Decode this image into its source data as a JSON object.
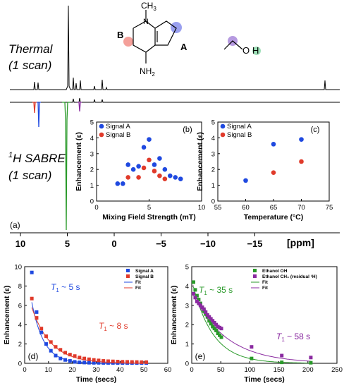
{
  "panel_labels": {
    "a": "(a)",
    "b": "(b)",
    "c": "(c)",
    "d": "(d)",
    "e": "(e)"
  },
  "spectrum": {
    "thermal_label_line1": "Thermal",
    "thermal_label_line2": "(1 scan)",
    "sabre_label_line1_sup": "1",
    "sabre_label_line1": "H SABRE",
    "sabre_label_line2": "(1 scan)",
    "axis_unit": "[ppm]",
    "ticks": [
      {
        "value": 10,
        "label": "10"
      },
      {
        "value": 5,
        "label": "5"
      },
      {
        "value": 0,
        "label": "0"
      },
      {
        "value": -5,
        "label": "−5"
      },
      {
        "value": -10,
        "label": "−10"
      },
      {
        "value": -15,
        "label": "−15"
      }
    ],
    "peak_colors": {
      "signal_a": "#1f49e0",
      "signal_b": "#e03a2a",
      "ethanol_oh": "#2a9a2a",
      "ethanol_ch": "#8a2aa0"
    }
  },
  "molecule": {
    "methyl": "CH",
    "methyl_sub": "3",
    "n_label": "N",
    "amine": "NH",
    "amine_sub": "2",
    "site_b": "B",
    "site_a": "A",
    "ethanol_o": "O",
    "ethanol_h": "H"
  },
  "chart_data": [
    {
      "id": "b",
      "type": "scatter",
      "xlabel": "Mixing Field Strength (mT)",
      "ylabel": "Enhancement (ε)",
      "xlim": [
        0,
        10
      ],
      "ylim": [
        0,
        5
      ],
      "xticks": [
        0,
        5,
        10
      ],
      "yticks": [
        0,
        1,
        2,
        3,
        4,
        5
      ],
      "legend_position": "top-left",
      "series": [
        {
          "name": "Signal A",
          "color": "#1f49e0",
          "points": [
            [
              2,
              1.1
            ],
            [
              2.5,
              1.1
            ],
            [
              3,
              2.3
            ],
            [
              3.5,
              2.0
            ],
            [
              4,
              2.2
            ],
            [
              4.5,
              3.4
            ],
            [
              5,
              3.9
            ],
            [
              5.5,
              2.3
            ],
            [
              6,
              2.7
            ],
            [
              6.5,
              2.0
            ],
            [
              7,
              1.6
            ],
            [
              7.5,
              1.5
            ],
            [
              8,
              1.4
            ]
          ]
        },
        {
          "name": "Signal B",
          "color": "#e03a2a",
          "points": [
            [
              3,
              1.5
            ],
            [
              4,
              1.5
            ],
            [
              4.5,
              2.1
            ],
            [
              5,
              2.6
            ],
            [
              5.5,
              1.9
            ],
            [
              6,
              1.6
            ],
            [
              6.5,
              1.4
            ]
          ]
        }
      ]
    },
    {
      "id": "c",
      "type": "scatter",
      "xlabel": "Temperature (°C)",
      "ylabel": "Enhancement (ε)",
      "xlim": [
        55,
        75
      ],
      "ylim": [
        0,
        5
      ],
      "xticks": [
        55,
        60,
        65,
        70,
        75
      ],
      "yticks": [
        0,
        1,
        2,
        3,
        4,
        5
      ],
      "legend_position": "top-left",
      "series": [
        {
          "name": "Signal A",
          "color": "#1f49e0",
          "points": [
            [
              60,
              1.3
            ],
            [
              65,
              3.6
            ],
            [
              70,
              3.9
            ]
          ]
        },
        {
          "name": "Signal B",
          "color": "#e03a2a",
          "points": [
            [
              65,
              1.8
            ],
            [
              70,
              2.5
            ]
          ]
        }
      ]
    },
    {
      "id": "d",
      "type": "scatter",
      "xlabel": "Time (secs)",
      "ylabel": "Enhancement (ε)",
      "xlim": [
        0,
        60
      ],
      "ylim": [
        0,
        10
      ],
      "xticks": [
        0,
        10,
        20,
        30,
        40,
        50,
        60
      ],
      "yticks": [
        0,
        2,
        4,
        6,
        8,
        10
      ],
      "legend_position": "top-right",
      "annotations": [
        {
          "text": "T",
          "sub": "1",
          "rest": " ~ 5 s",
          "color": "#1f49e0"
        },
        {
          "text": "T",
          "sub": "1",
          "rest": " ~ 8 s",
          "color": "#e03a2a"
        }
      ],
      "series": [
        {
          "name": "Signal A",
          "color": "#1f49e0",
          "marker": "square",
          "points": [
            [
              3,
              9.4
            ],
            [
              5,
              5.3
            ],
            [
              7,
              3.2
            ],
            [
              9,
              2.0
            ],
            [
              11,
              1.3
            ],
            [
              13,
              0.8
            ],
            [
              15,
              0.5
            ],
            [
              17,
              0.35
            ],
            [
              19,
              0.25
            ],
            [
              21,
              0.15
            ],
            [
              23,
              0.1
            ],
            [
              25,
              0.08
            ],
            [
              27,
              0.06
            ],
            [
              29,
              0.05
            ],
            [
              31,
              0.05
            ],
            [
              33,
              0.04
            ],
            [
              35,
              0.04
            ],
            [
              37,
              0.04
            ],
            [
              39,
              0.03
            ],
            [
              41,
              0.03
            ],
            [
              43,
              0.03
            ],
            [
              45,
              0.03
            ],
            [
              47,
              0.03
            ],
            [
              49,
              0.03
            ],
            [
              51,
              0.03
            ]
          ]
        },
        {
          "name": "Signal B",
          "color": "#e03a2a",
          "marker": "square",
          "points": [
            [
              3,
              6.7
            ],
            [
              5,
              4.7
            ],
            [
              7,
              3.6
            ],
            [
              9,
              2.8
            ],
            [
              11,
              2.2
            ],
            [
              13,
              1.7
            ],
            [
              15,
              1.4
            ],
            [
              17,
              1.1
            ],
            [
              19,
              0.9
            ],
            [
              21,
              0.75
            ],
            [
              23,
              0.6
            ],
            [
              25,
              0.5
            ],
            [
              27,
              0.42
            ],
            [
              29,
              0.35
            ],
            [
              31,
              0.3
            ],
            [
              33,
              0.25
            ],
            [
              35,
              0.22
            ],
            [
              37,
              0.2
            ],
            [
              39,
              0.18
            ],
            [
              41,
              0.16
            ],
            [
              43,
              0.15
            ],
            [
              45,
              0.14
            ],
            [
              47,
              0.13
            ],
            [
              49,
              0.12
            ],
            [
              51,
              0.12
            ]
          ]
        },
        {
          "name": "Fit",
          "color": "#1f49e0",
          "line": true,
          "fit": {
            "a": 11.5,
            "t1": 5,
            "start": 3,
            "end": 51
          }
        },
        {
          "name": "Fit",
          "color": "#e03a2a",
          "line": true,
          "fit": {
            "a": 8.4,
            "t1": 8,
            "start": 3,
            "end": 51
          }
        }
      ]
    },
    {
      "id": "e",
      "type": "scatter",
      "xlabel": "Time (secs)",
      "ylabel": "Enhancement (ε)",
      "xlim": [
        0,
        250
      ],
      "ylim": [
        0,
        5
      ],
      "xticks": [
        0,
        50,
        100,
        150,
        200,
        250
      ],
      "yticks": [
        0,
        1,
        2,
        3,
        4,
        5
      ],
      "legend_position": "top-right",
      "annotations": [
        {
          "text": "T",
          "sub": "1",
          "rest": " ~ 35 s",
          "color": "#2a9a2a"
        },
        {
          "text": "T",
          "sub": "1",
          "rest": " ~ 58 s",
          "color": "#8a2aa0"
        }
      ],
      "series": [
        {
          "name": "Ethanol OH",
          "color": "#2a9a2a",
          "marker": "square",
          "points": [
            [
              3,
              4.2
            ],
            [
              6,
              3.8
            ],
            [
              9,
              3.5
            ],
            [
              12,
              3.3
            ],
            [
              15,
              3.1
            ],
            [
              18,
              2.9
            ],
            [
              21,
              2.7
            ],
            [
              24,
              2.55
            ],
            [
              27,
              2.4
            ],
            [
              30,
              2.2
            ],
            [
              33,
              2.05
            ],
            [
              36,
              1.9
            ],
            [
              39,
              1.8
            ],
            [
              42,
              1.7
            ],
            [
              45,
              1.55
            ],
            [
              48,
              1.45
            ],
            [
              51,
              1.35
            ],
            [
              103,
              0.25
            ],
            [
              155,
              0.05
            ],
            [
              205,
              0.03
            ]
          ]
        },
        {
          "name": "Ethanol CH₃ (residual ¹H)",
          "color": "#8a2aa0",
          "marker": "square",
          "points": [
            [
              3,
              3.6
            ],
            [
              6,
              3.4
            ],
            [
              9,
              3.2
            ],
            [
              12,
              3.1
            ],
            [
              15,
              3.0
            ],
            [
              18,
              2.9
            ],
            [
              21,
              2.8
            ],
            [
              24,
              2.65
            ],
            [
              27,
              2.5
            ],
            [
              30,
              2.4
            ],
            [
              33,
              2.3
            ],
            [
              36,
              2.2
            ],
            [
              39,
              2.1
            ],
            [
              42,
              2.0
            ],
            [
              45,
              1.9
            ],
            [
              48,
              1.85
            ],
            [
              51,
              1.8
            ],
            [
              103,
              0.85
            ],
            [
              155,
              0.4
            ],
            [
              205,
              0.3
            ]
          ]
        },
        {
          "name": "Fit",
          "color": "#2a9a2a",
          "line": true,
          "fit": {
            "a": 4.3,
            "t1": 35,
            "start": 3,
            "end": 205
          }
        },
        {
          "name": "Fit",
          "color": "#8a2aa0",
          "line": true,
          "fit": {
            "a": 3.7,
            "t1": 58,
            "start": 3,
            "end": 205
          }
        }
      ]
    }
  ]
}
